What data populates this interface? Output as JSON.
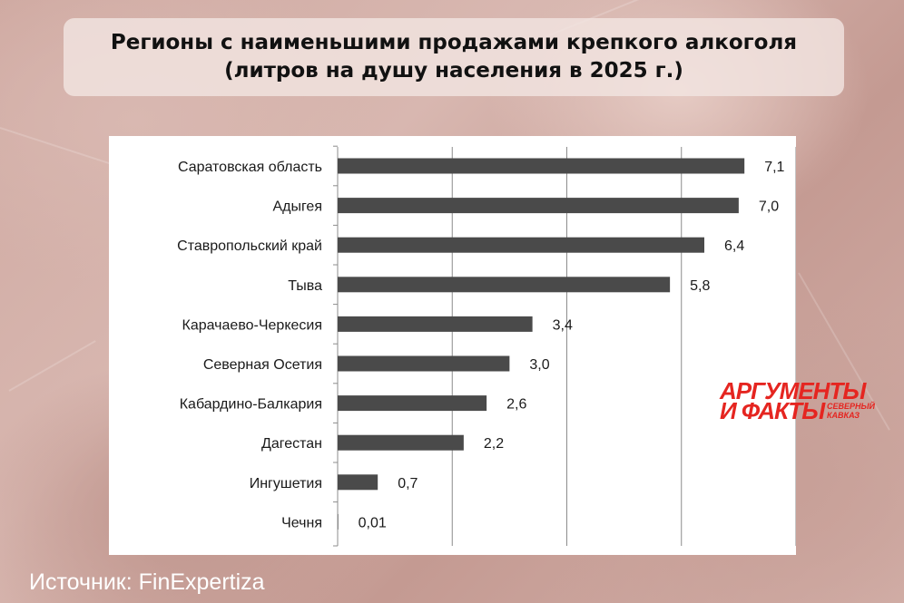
{
  "title": {
    "line1": "Регионы с наименьшими продажами крепкого алкоголя",
    "line2": "(литров на душу населения в 2025 г.)"
  },
  "logo": {
    "line1": "АРГУМЕНТЫ",
    "line2": "И ФАКТЫ",
    "sub_line1": "СЕВЕРНЫЙ",
    "sub_line2": "КАВКАЗ",
    "color": "#e52520"
  },
  "source": "Источник: FinExpertiza",
  "chart_data": {
    "type": "bar",
    "orientation": "horizontal",
    "categories": [
      "Саратовская область",
      "Адыгея",
      "Ставропольский край",
      "Тыва",
      "Карачаево-Черкесия",
      "Северная Осетия",
      "Кабардино-Балкария",
      "Дагестан",
      "Ингушетия",
      "Чечня"
    ],
    "values": [
      7.1,
      7.0,
      6.4,
      5.8,
      3.4,
      3.0,
      2.6,
      2.2,
      0.7,
      0.01
    ],
    "value_labels": [
      "7,1",
      "7,0",
      "6,4",
      "5,8",
      "3,4",
      "3,0",
      "2,6",
      "2,2",
      "0,7",
      "0,01"
    ],
    "xlim": [
      0,
      8
    ],
    "grid": true,
    "bar_color": "#4a4a4a",
    "grid_color": "#8c8c8c"
  }
}
